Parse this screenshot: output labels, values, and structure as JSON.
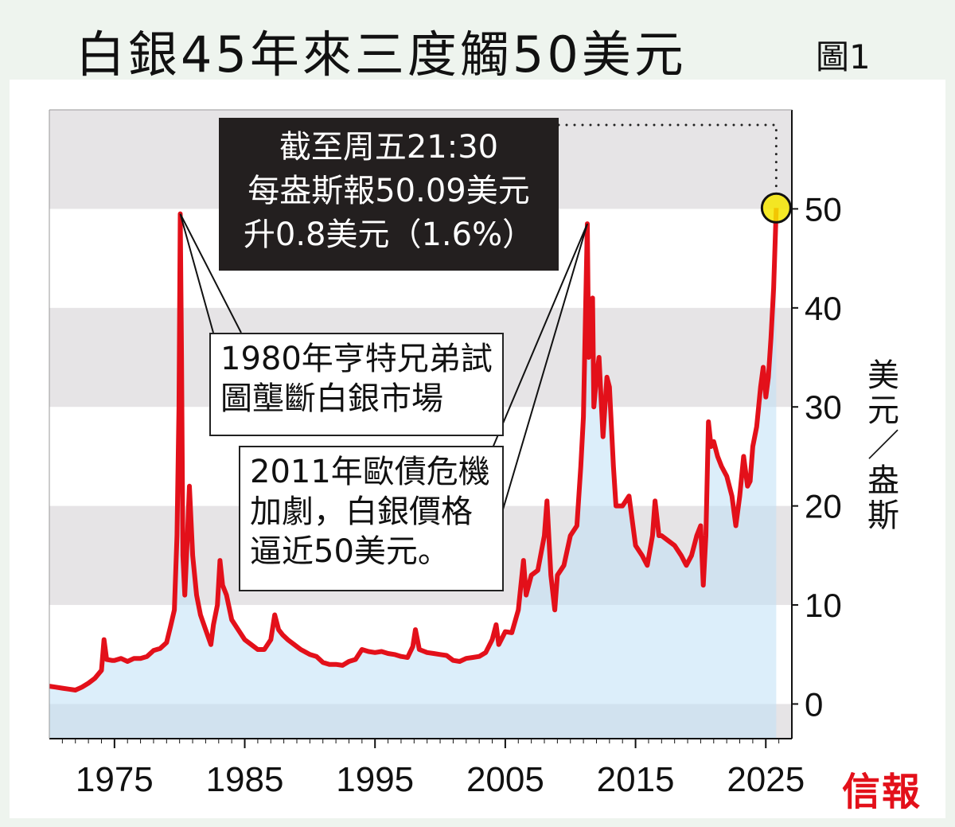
{
  "title": {
    "main": "白銀45年來三度觸50美元",
    "figure": "圖1"
  },
  "logo": "信報",
  "annotations": {
    "current": [
      "截至周五21:30",
      "每盎斯報50.09美元",
      "升0.8美元（1.6%）"
    ],
    "hunt_1980": [
      "1980年亨特兄弟試",
      "圖壟斷白銀市場"
    ],
    "euro_2011": [
      "2011年歐債危機",
      "加劇，白銀價格",
      "逼近50美元。"
    ]
  },
  "colors": {
    "line": "#e3101a",
    "fill": "#d9ecf8",
    "band": "#e6e4e6",
    "marker": "#f4e600"
  },
  "chart_data": {
    "type": "line",
    "title": "白銀45年來三度觸50美元",
    "xlabel": "",
    "ylabel": "美元／盎斯",
    "ylabel_chars": [
      "美",
      "元",
      "／",
      "盎",
      "斯"
    ],
    "xlim": [
      1970,
      2027
    ],
    "ylim": [
      -3.5,
      60
    ],
    "xticks": [
      1975,
      1985,
      1995,
      2005,
      2015,
      2025
    ],
    "xtick_labels": [
      "1975",
      "1985",
      "1995",
      "2005",
      "2015",
      "2025"
    ],
    "yticks": [
      0,
      10,
      20,
      30,
      40,
      50
    ],
    "ytick_labels": [
      "0",
      "10",
      "20",
      "30",
      "40",
      "50"
    ],
    "y_axis_side": "right",
    "grid": "alternating horizontal bands",
    "series": [
      {
        "name": "白銀價格",
        "x": [
          1970,
          1970.5,
          1971,
          1971.5,
          1972,
          1972.5,
          1973,
          1973.5,
          1974,
          1974.2,
          1974.4,
          1974.8,
          1975,
          1975.5,
          1976,
          1976.5,
          1977,
          1977.5,
          1978,
          1978.5,
          1979,
          1979.3,
          1979.6,
          1979.8,
          1979.95,
          1980.05,
          1980.15,
          1980.25,
          1980.4,
          1980.6,
          1980.75,
          1981,
          1981.3,
          1981.6,
          1982,
          1982.4,
          1982.6,
          1982.9,
          1983.1,
          1983.3,
          1983.6,
          1984,
          1984.5,
          1985,
          1985.5,
          1986,
          1986.5,
          1987,
          1987.3,
          1987.6,
          1987.9,
          1988.3,
          1988.8,
          1989.3,
          1990,
          1990.5,
          1991,
          1991.5,
          1992,
          1992.5,
          1993,
          1993.5,
          1994,
          1994.5,
          1995,
          1995.5,
          1996,
          1996.5,
          1997,
          1997.5,
          1997.9,
          1998.1,
          1998.4,
          1999,
          1999.5,
          2000,
          2000.5,
          2001,
          2001.5,
          2002,
          2002.5,
          2003,
          2003.5,
          2004,
          2004.3,
          2004.5,
          2005,
          2005.5,
          2006,
          2006.4,
          2006.6,
          2007,
          2007.5,
          2008,
          2008.2,
          2008.5,
          2008.8,
          2009,
          2009.5,
          2010,
          2010.5,
          2010.8,
          2011,
          2011.3,
          2011.4,
          2011.55,
          2011.7,
          2011.8,
          2012,
          2012.2,
          2012.5,
          2012.8,
          2013,
          2013.3,
          2013.5,
          2014,
          2014.5,
          2015,
          2015.5,
          2015.9,
          2016.3,
          2016.5,
          2016.8,
          2017,
          2017.5,
          2018,
          2018.5,
          2018.9,
          2019.3,
          2019.7,
          2020,
          2020.2,
          2020.4,
          2020.6,
          2020.8,
          2021,
          2021.3,
          2021.6,
          2022,
          2022.4,
          2022.7,
          2023,
          2023.3,
          2023.6,
          2023.8,
          2024,
          2024.3,
          2024.6,
          2024.8,
          2025,
          2025.2,
          2025.4,
          2025.6,
          2025.8
        ],
        "y": [
          1.8,
          1.7,
          1.6,
          1.5,
          1.4,
          1.7,
          2.1,
          2.6,
          3.4,
          6.5,
          4.5,
          4.4,
          4.4,
          4.6,
          4.3,
          4.6,
          4.6,
          4.8,
          5.4,
          5.6,
          6.2,
          7.8,
          9.5,
          17,
          30,
          49.5,
          35,
          15,
          11,
          17,
          22,
          15,
          11,
          9,
          7.5,
          6,
          8,
          10,
          14.5,
          12,
          11,
          8.5,
          7.5,
          6.5,
          6,
          5.5,
          5.5,
          6.5,
          9,
          7.5,
          7,
          6.5,
          6,
          5.5,
          5,
          4.8,
          4.2,
          4,
          4,
          3.9,
          4.3,
          4.5,
          5.5,
          5.3,
          5.2,
          5.3,
          5.1,
          5,
          4.8,
          4.7,
          5.8,
          7.5,
          5.5,
          5.2,
          5.1,
          5,
          4.9,
          4.4,
          4.3,
          4.6,
          4.7,
          4.8,
          5.2,
          6.5,
          8,
          6,
          7.3,
          7.2,
          9.5,
          14.5,
          11,
          13,
          13.5,
          17,
          20.5,
          13,
          9.5,
          13,
          14,
          17,
          18,
          24,
          29,
          48.5,
          35,
          40,
          41,
          30,
          33,
          35,
          27,
          33,
          32,
          24,
          20,
          20,
          21,
          16,
          15,
          14,
          17,
          20.5,
          17,
          17,
          16.5,
          16,
          15,
          14,
          15,
          17,
          18,
          12,
          17,
          28.5,
          26,
          26.5,
          25,
          24,
          23,
          21,
          18,
          21,
          25,
          22,
          22.5,
          26,
          28,
          32,
          34,
          31,
          33,
          37,
          42,
          50.09
        ]
      }
    ],
    "current_value": 50.09
  }
}
